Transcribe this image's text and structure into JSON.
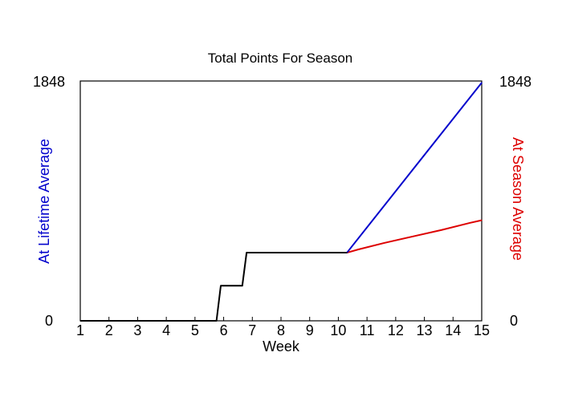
{
  "chart_data": {
    "type": "line",
    "title": "Total Points For Season",
    "xlabel": "Week",
    "ylabel_left": "At Lifetime Average",
    "ylabel_right": "At Season Average",
    "xlim": [
      1,
      15
    ],
    "ylim": [
      0,
      1848
    ],
    "x_ticks": [
      1,
      2,
      3,
      4,
      5,
      6,
      7,
      8,
      9,
      10,
      11,
      12,
      13,
      14,
      15
    ],
    "y_tick_labels": [
      "0",
      "1848"
    ],
    "grid": false,
    "colors": {
      "actual": "#000000",
      "lifetime": "#0000cc",
      "season": "#dd0000",
      "left_label": "#0000cc",
      "right_label": "#dd0000"
    },
    "series": [
      {
        "key": "actual",
        "points": [
          [
            1,
            0
          ],
          [
            5.75,
            0
          ],
          [
            5.9,
            270
          ],
          [
            6.65,
            270
          ],
          [
            6.8,
            525
          ],
          [
            10.3,
            525
          ]
        ]
      },
      {
        "key": "lifetime",
        "points": [
          [
            10.3,
            525
          ],
          [
            15,
            1835
          ]
        ]
      },
      {
        "key": "season",
        "points": [
          [
            10.3,
            525
          ],
          [
            10.7,
            550
          ],
          [
            11.6,
            600
          ],
          [
            12.6,
            650
          ],
          [
            13.6,
            700
          ],
          [
            14.6,
            755
          ],
          [
            15,
            775
          ]
        ]
      }
    ]
  }
}
